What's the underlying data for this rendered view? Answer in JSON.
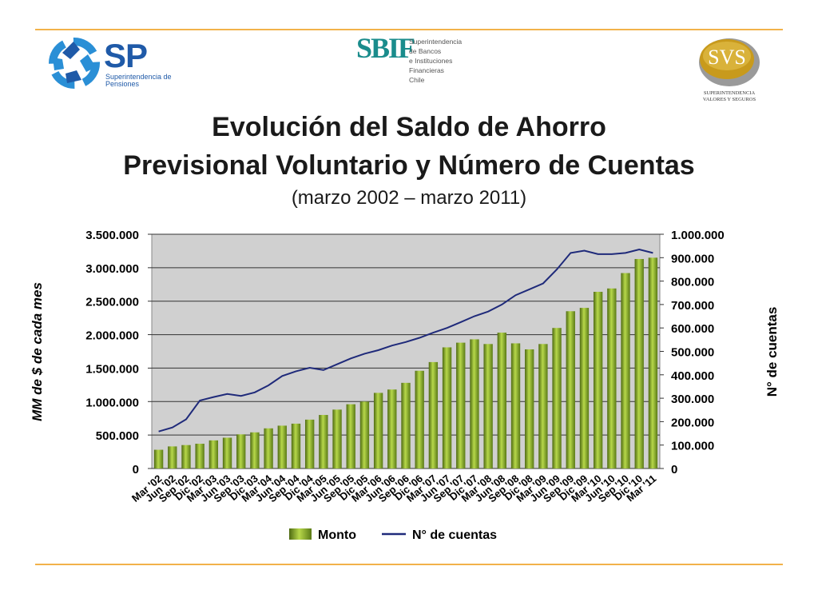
{
  "logos": {
    "sp": {
      "mark": "SP",
      "subtitle": "Superintendencia de Pensiones",
      "icon": "hands-circle-icon"
    },
    "sbif": {
      "mark": "SBIF",
      "text_lines": [
        "Superintendencia",
        "de Bancos",
        "e Instituciones",
        "Financieras",
        "Chile"
      ]
    },
    "svs": {
      "mark": "SVS",
      "caption_lines": [
        "SUPERINTENDENCIA",
        "VALORES Y SEGUROS"
      ]
    }
  },
  "colors": {
    "rule": "#f2b24a",
    "bar_light": "#b7d84a",
    "bar_dark": "#4e6a12",
    "line": "#1f2a7a",
    "plot_bg": "#d0d0d0"
  },
  "title_line1": "Evolución del Saldo de Ahorro",
  "title_line2": "Previsional Voluntario y Número de Cuentas",
  "subtitle": "(marzo 2002 – marzo 2011)",
  "chart_data": {
    "type": "bar",
    "categories": [
      "Mar '02",
      "Jun '02",
      "Sep '02",
      "Dic '02",
      "Mar '03",
      "Jun '03",
      "Sep '03",
      "Dic '03",
      "Mar '04",
      "Jun '04",
      "Sep '04",
      "Dic '04",
      "Mar '05",
      "Jun '05",
      "Sep '05",
      "Dic '05",
      "Mar '06",
      "Jun '06",
      "Sep '06",
      "Dic '06",
      "Mar '07",
      "Jun '07",
      "Sep '07",
      "Dic '07",
      "Mar '08",
      "Jun '08",
      "Sep '08",
      "Dic '08",
      "Mar '09",
      "Jun '09",
      "Sep '09",
      "Dic '09",
      "Mar '10",
      "Jun '10",
      "Sep '10",
      "Dic '10",
      "Mar '11"
    ],
    "series": [
      {
        "name": "Monto",
        "type": "bar",
        "axis": "left",
        "values": [
          280000,
          330000,
          350000,
          370000,
          420000,
          460000,
          510000,
          540000,
          600000,
          640000,
          670000,
          730000,
          800000,
          880000,
          960000,
          1000000,
          1130000,
          1180000,
          1280000,
          1460000,
          1590000,
          1810000,
          1880000,
          1930000,
          1860000,
          2030000,
          1870000,
          1780000,
          1860000,
          2100000,
          2350000,
          2400000,
          2640000,
          2690000,
          2920000,
          3130000,
          3150000
        ]
      },
      {
        "name": "N° de cuentas",
        "type": "line",
        "axis": "right",
        "values": [
          158000,
          175000,
          210000,
          290000,
          305000,
          318000,
          310000,
          325000,
          355000,
          395000,
          415000,
          430000,
          420000,
          445000,
          470000,
          490000,
          505000,
          525000,
          540000,
          558000,
          580000,
          600000,
          625000,
          650000,
          670000,
          700000,
          740000,
          765000,
          790000,
          850000,
          920000,
          930000,
          915000,
          915000,
          920000,
          935000,
          920000
        ]
      }
    ],
    "y_left": {
      "label": "MM de $ de cada mes",
      "ticks": [
        "0",
        "500.000",
        "1.000.000",
        "1.500.000",
        "2.000.000",
        "2.500.000",
        "3.000.000",
        "3.500.000"
      ],
      "range": [
        0,
        3500000
      ]
    },
    "y_right": {
      "label": "N° de cuentas",
      "ticks": [
        "0",
        "100.000",
        "200.000",
        "300.000",
        "400.000",
        "500.000",
        "600.000",
        "700.000",
        "800.000",
        "900.000",
        "1.000.000"
      ],
      "range": [
        0,
        1000000
      ]
    },
    "grid": true,
    "legend": {
      "position": "bottom",
      "entries": [
        "Monto",
        "N° de cuentas"
      ]
    }
  }
}
